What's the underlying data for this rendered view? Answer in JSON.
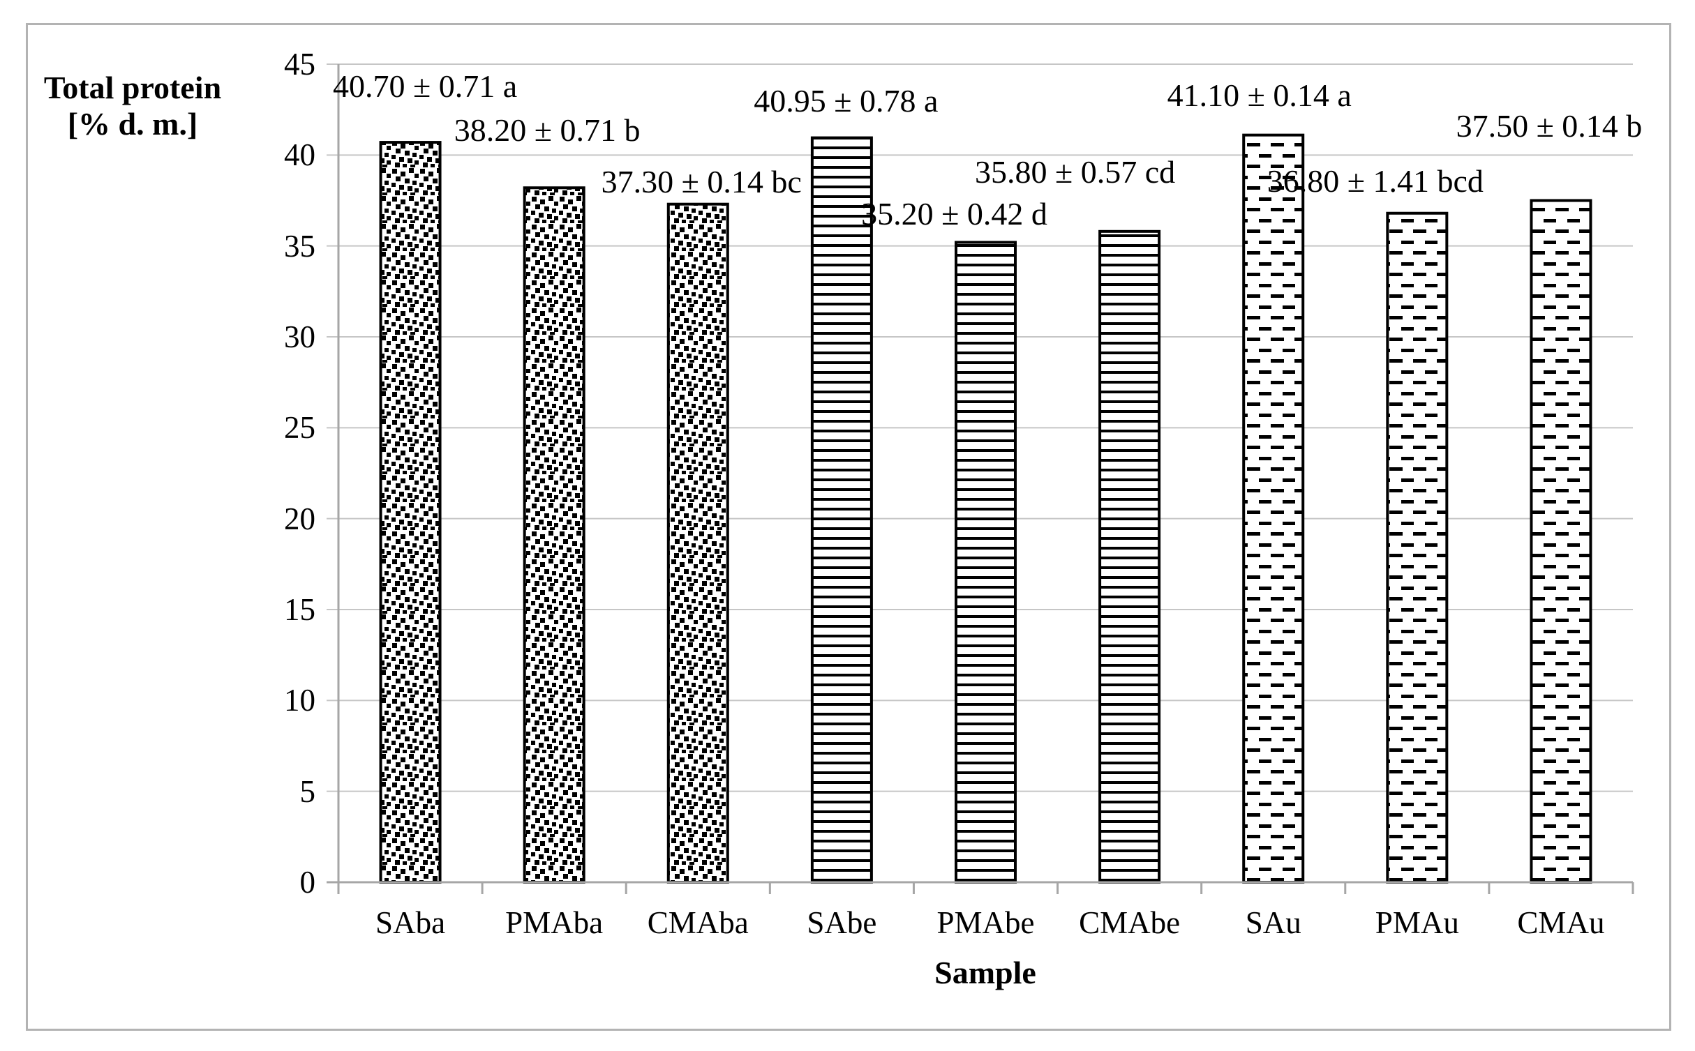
{
  "chart_data": {
    "type": "bar",
    "title": "",
    "y_axis_title_line1": "Total protein",
    "y_axis_title_line2": "[% d. m.]",
    "x_axis_title": "Sample",
    "categories": [
      "SAba",
      "PMAba",
      "CMAba",
      "SAbe",
      "PMAbe",
      "CMAbe",
      "SAu",
      "PMAu",
      "CMAu"
    ],
    "values": [
      40.7,
      38.2,
      37.3,
      40.95,
      35.2,
      35.8,
      41.1,
      36.8,
      37.5
    ],
    "errors": [
      0.71,
      0.71,
      0.14,
      0.78,
      0.42,
      0.57,
      0.14,
      1.41,
      0.14
    ],
    "significance_letters": [
      "a",
      "b",
      "bc",
      "a",
      "d",
      "cd",
      "a",
      "bcd",
      "b"
    ],
    "data_labels": [
      "40.70 ± 0.71 a",
      "38.20 ± 0.71 b",
      "37.30 ± 0.14 bc",
      "40.95 ± 0.78 a",
      "35.20 ± 0.42 d",
      "35.80 ± 0.57 cd",
      "41.10 ± 0.14 a",
      "36.80 ± 1.41 bcd",
      "37.50 ± 0.14 b"
    ],
    "bar_patterns": [
      "dots",
      "dots",
      "dots",
      "hlines",
      "hlines",
      "hlines",
      "dashes",
      "dashes",
      "dashes"
    ],
    "y_ticks": [
      0,
      5,
      10,
      15,
      20,
      25,
      30,
      35,
      40,
      45
    ],
    "y_tick_labels": [
      "0",
      "5",
      "10",
      "15",
      "20",
      "25",
      "30",
      "35",
      "40",
      "45"
    ],
    "ylim": [
      0,
      45
    ],
    "grid": true,
    "legend": "none",
    "label_offsets": [
      {
        "dx": 21,
        "gap": 57
      },
      {
        "dx": -10,
        "gap": 59
      },
      {
        "dx": 5,
        "gap": 9
      },
      {
        "dx": 6,
        "gap": 30
      },
      {
        "dx": -45,
        "gap": 17
      },
      {
        "dx": -78,
        "gap": 62
      },
      {
        "dx": -20,
        "gap": 34
      },
      {
        "dx": -60,
        "gap": 23
      },
      {
        "dx": -17,
        "gap": 84
      }
    ],
    "colors": {
      "bar_fill": "#ffffff",
      "bar_stroke": "#000000",
      "gridline": "#c6c6c6",
      "axis": "#a6a6a6",
      "frame_border": "#b3b3b3",
      "text": "#000000"
    }
  }
}
